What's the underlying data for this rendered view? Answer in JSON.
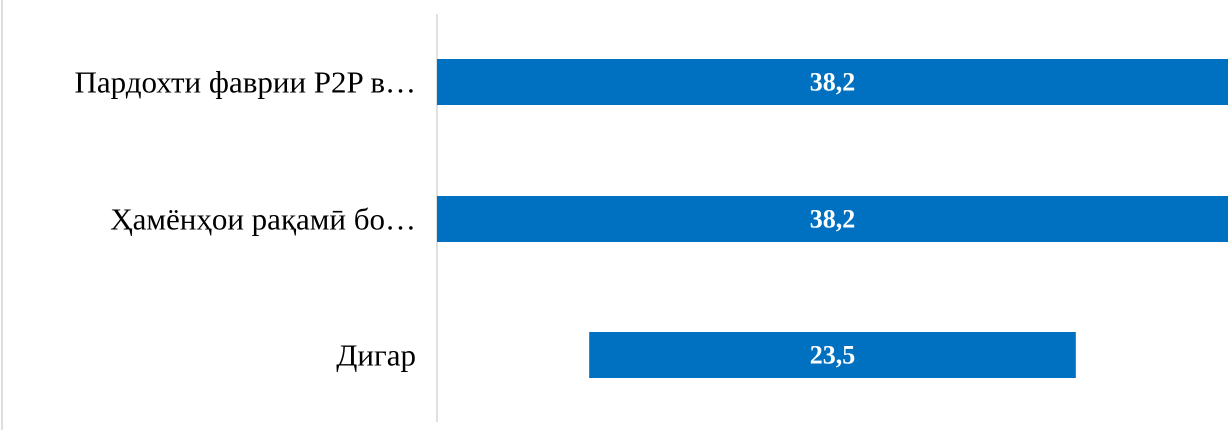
{
  "chart_data": {
    "type": "bar",
    "orientation": "horizontal",
    "categories": [
      "Пардохти фаврии P2P в…",
      "Ҳамёнҳои рақамӣ бо…",
      "Дигар"
    ],
    "values": [
      38.2,
      38.2,
      23.5
    ],
    "value_labels": [
      "38,2",
      "38,2",
      "23,5"
    ],
    "bar_color": "#0070c0",
    "grid": false,
    "legend": "none"
  }
}
